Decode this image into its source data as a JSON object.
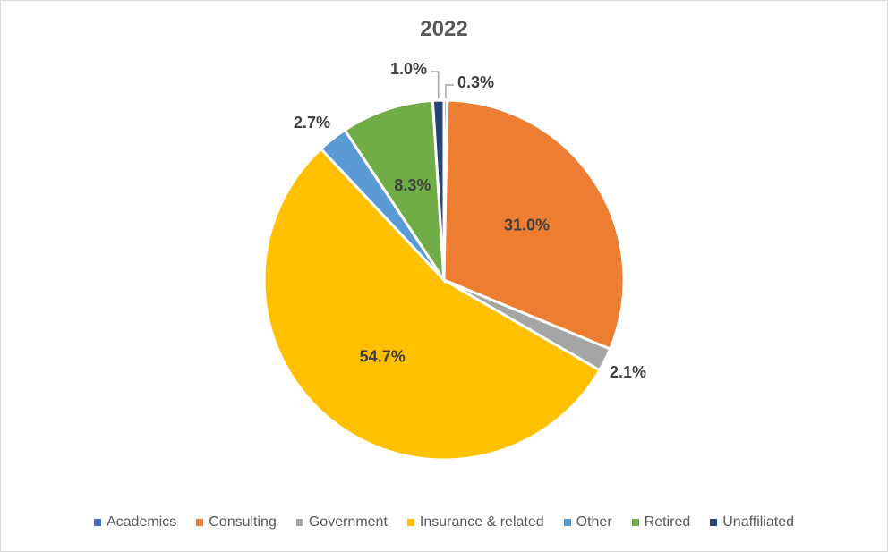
{
  "chart_data": {
    "type": "pie",
    "title": "2022",
    "categories": [
      "Academics",
      "Consulting",
      "Government",
      "Insurance & related",
      "Other",
      "Retired",
      "Unaffiliated"
    ],
    "values": [
      0.3,
      31.0,
      2.1,
      54.7,
      2.7,
      8.3,
      1.0
    ],
    "labels": [
      "0.3%",
      "31.0%",
      "2.1%",
      "54.7%",
      "2.7%",
      "8.3%",
      "1.0%"
    ],
    "colors": [
      "#4472c4",
      "#ed7d31",
      "#a5a5a5",
      "#ffc000",
      "#5b9bd5",
      "#70ad47",
      "#264478"
    ],
    "legend_position": "bottom"
  }
}
